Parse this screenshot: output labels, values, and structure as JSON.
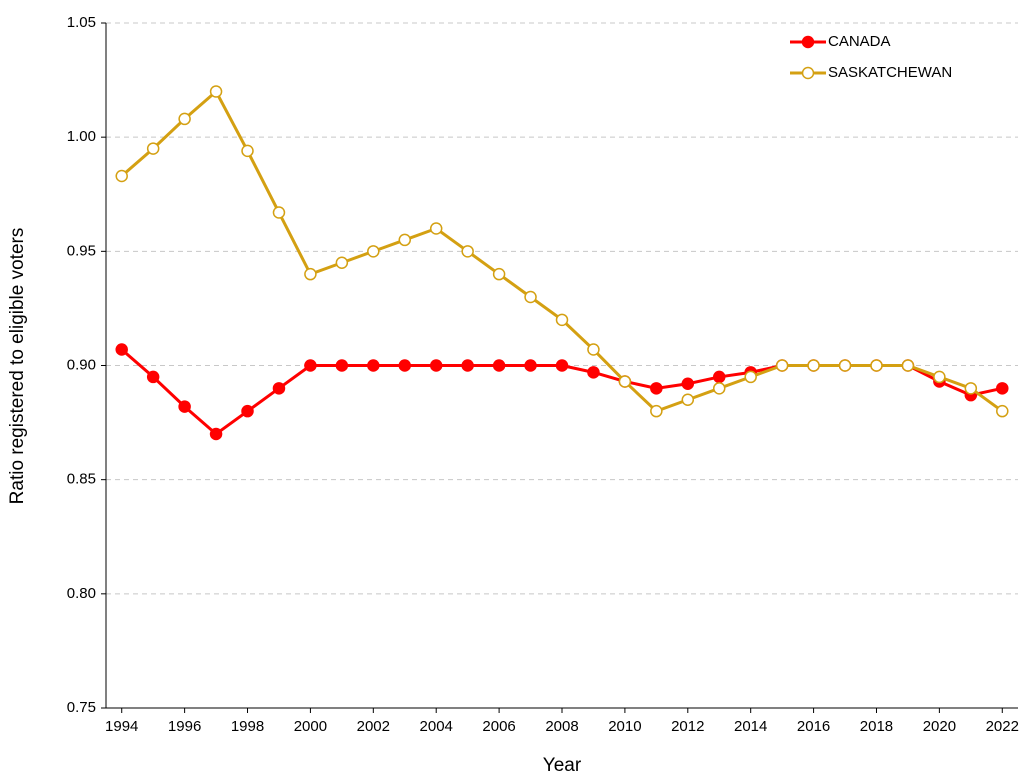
{
  "chart_data": {
    "type": "line",
    "x_label": "Year",
    "y_label": "Ratio registered to eligible voters",
    "x": [
      1994,
      1995,
      1996,
      1997,
      1998,
      1999,
      2000,
      2001,
      2002,
      2003,
      2004,
      2005,
      2006,
      2007,
      2008,
      2009,
      2010,
      2011,
      2012,
      2013,
      2014,
      2015,
      2016,
      2017,
      2018,
      2019,
      2020,
      2021,
      2022
    ],
    "series": [
      {
        "name": "CANADA",
        "color": "#ff0000",
        "marker": "filled",
        "values": [
          0.907,
          0.895,
          0.882,
          0.87,
          0.88,
          0.89,
          0.9,
          0.9,
          0.9,
          0.9,
          0.9,
          0.9,
          0.9,
          0.9,
          0.9,
          0.897,
          0.893,
          0.89,
          0.892,
          0.895,
          0.897,
          0.9,
          0.9,
          0.9,
          0.9,
          0.9,
          0.893,
          0.887,
          0.89
        ]
      },
      {
        "name": "SASKATCHEWAN",
        "color": "#d4a012",
        "marker": "hollow",
        "values": [
          0.983,
          0.995,
          1.008,
          1.02,
          0.994,
          0.967,
          0.94,
          0.945,
          0.95,
          0.955,
          0.96,
          0.95,
          0.94,
          0.93,
          0.92,
          0.907,
          0.893,
          0.88,
          0.885,
          0.89,
          0.895,
          0.9,
          0.9,
          0.9,
          0.9,
          0.9,
          0.895,
          0.89,
          0.88
        ]
      }
    ],
    "xlim": [
      1993.5,
      2022.5
    ],
    "xticks": [
      1994,
      1996,
      1998,
      2000,
      2002,
      2004,
      2006,
      2008,
      2010,
      2012,
      2014,
      2016,
      2018,
      2020,
      2022
    ],
    "ylim": [
      0.75,
      1.05
    ],
    "yticks": [
      0.75,
      {
        "value": 0.8,
        "label": "0.80"
      },
      0.85,
      {
        "value": 0.9,
        "label": "0.90"
      },
      0.95,
      {
        "value": 1,
        "label": "1.00"
      },
      1.05
    ],
    "grid": true,
    "legend": "top-right"
  }
}
